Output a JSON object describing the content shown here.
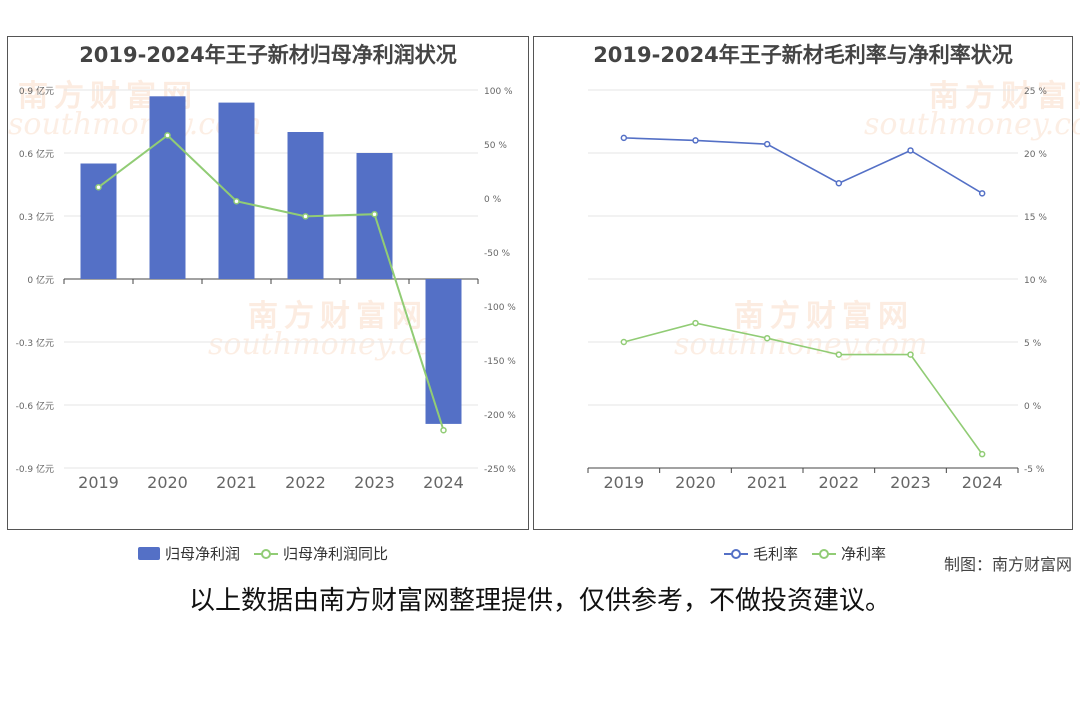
{
  "credit": "制图：南方财富网",
  "disclaimer": "以上数据由南方财富网整理提供，仅供参考，不做投资建议。",
  "watermark": {
    "cn": "南方财富网",
    "en": "southmoney.com"
  },
  "colors": {
    "bar": "#5470c6",
    "line_blue": "#5470c6",
    "line_green": "#91cc75"
  },
  "chart_data": [
    {
      "type": "bar",
      "title": "2019-2024年王子新材归母净利润状况",
      "categories": [
        "2019",
        "2020",
        "2021",
        "2022",
        "2023",
        "2024"
      ],
      "series": [
        {
          "name": "归母净利润",
          "type": "bar",
          "axis": "left",
          "values": [
            0.55,
            0.87,
            0.84,
            0.7,
            0.6,
            -0.69
          ]
        },
        {
          "name": "归母净利润同比",
          "type": "line",
          "axis": "right",
          "values": [
            10,
            58,
            -3,
            -17,
            -15,
            -215
          ]
        }
      ],
      "left_axis": {
        "ticks": [
          "0.9 亿元",
          "0.6 亿元",
          "0.3 亿元",
          "0 亿元",
          "-0.3 亿元",
          "-0.6 亿元",
          "-0.9 亿元"
        ],
        "min": -0.9,
        "max": 0.9
      },
      "right_axis": {
        "ticks": [
          "100 %",
          "50 %",
          "0 %",
          "-50 %",
          "-100 %",
          "-150 %",
          "-200 %",
          "-250 %"
        ],
        "min": -250,
        "max": 100
      },
      "legend": "bottom"
    },
    {
      "type": "line",
      "title": "2019-2024年王子新材毛利率与净利率状况",
      "categories": [
        "2019",
        "2020",
        "2021",
        "2022",
        "2023",
        "2024"
      ],
      "series": [
        {
          "name": "毛利率",
          "values": [
            21.2,
            21.0,
            20.7,
            17.6,
            20.2,
            16.8
          ]
        },
        {
          "name": "净利率",
          "values": [
            5.0,
            6.5,
            5.3,
            4.0,
            4.0,
            -3.9
          ]
        }
      ],
      "right_axis": {
        "ticks": [
          "25 %",
          "20 %",
          "15 %",
          "10 %",
          "5 %",
          "0 %",
          "-5 %"
        ],
        "min": -5,
        "max": 25
      },
      "legend": "bottom"
    }
  ]
}
